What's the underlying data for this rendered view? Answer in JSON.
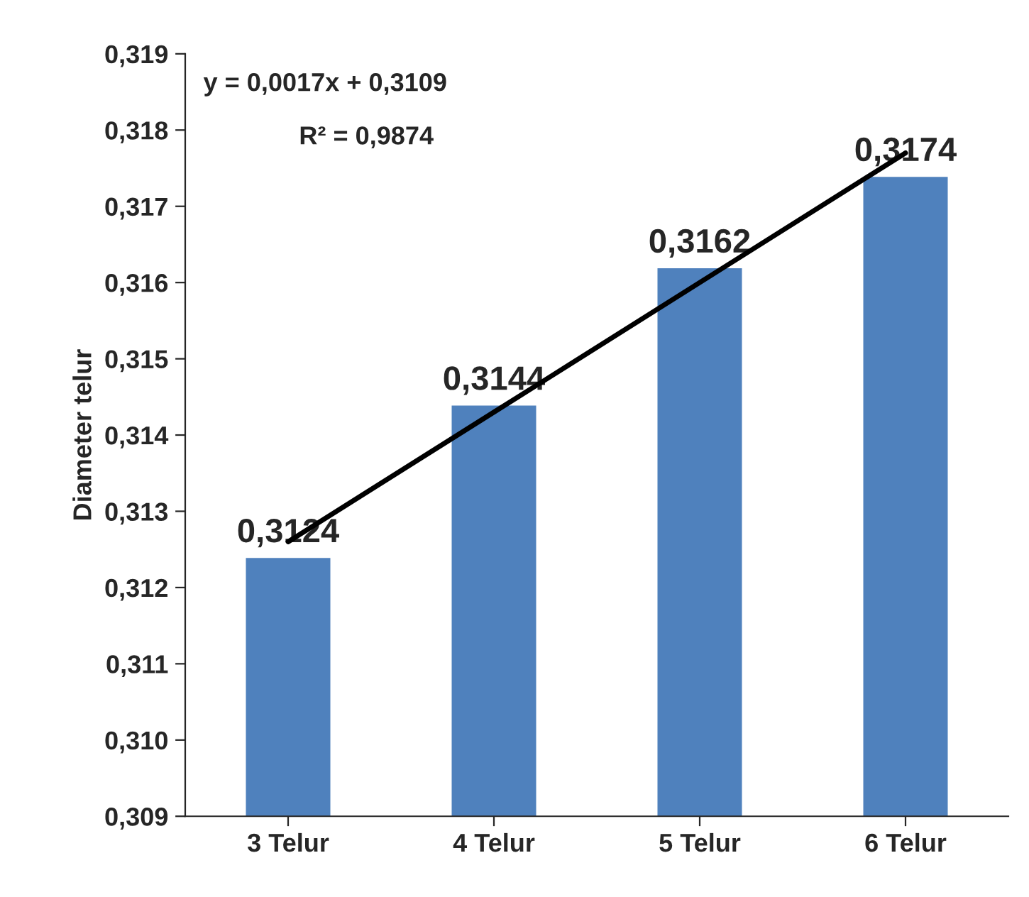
{
  "chart_data": {
    "type": "bar",
    "ylabel": "Diameter telur",
    "categories": [
      "3 Telur",
      "4 Telur",
      "5 Telur",
      "6 Telur"
    ],
    "series": [
      {
        "color": "#4f81bd",
        "values": [
          0.3124,
          0.3144,
          0.3162,
          0.3174
        ],
        "value_labels": [
          "0,3124",
          "0,3144",
          "0,3162",
          "0,3174"
        ]
      },
      {
        "type": "line",
        "color": "#000000",
        "values": [
          0.3126,
          0.3143,
          0.316,
          0.3177
        ]
      }
    ],
    "ylim": [
      0.309,
      0.319
    ],
    "yticks": [
      {
        "value": 0.309,
        "label": "0,309"
      },
      {
        "value": 0.31,
        "label": "0,310"
      },
      {
        "value": 0.311,
        "label": "0,311"
      },
      {
        "value": 0.312,
        "label": "0,312"
      },
      {
        "value": 0.313,
        "label": "0,313"
      },
      {
        "value": 0.314,
        "label": "0,314"
      },
      {
        "value": 0.315,
        "label": "0,315"
      },
      {
        "value": 0.316,
        "label": "0,316"
      },
      {
        "value": 0.317,
        "label": "0,317"
      },
      {
        "value": 0.318,
        "label": "0,318"
      },
      {
        "value": 0.319,
        "label": "0,319"
      }
    ],
    "annotations": [
      "y = 0,0017x + 0,3109",
      "R² = 0,9874"
    ],
    "grid": false,
    "legend": false
  }
}
